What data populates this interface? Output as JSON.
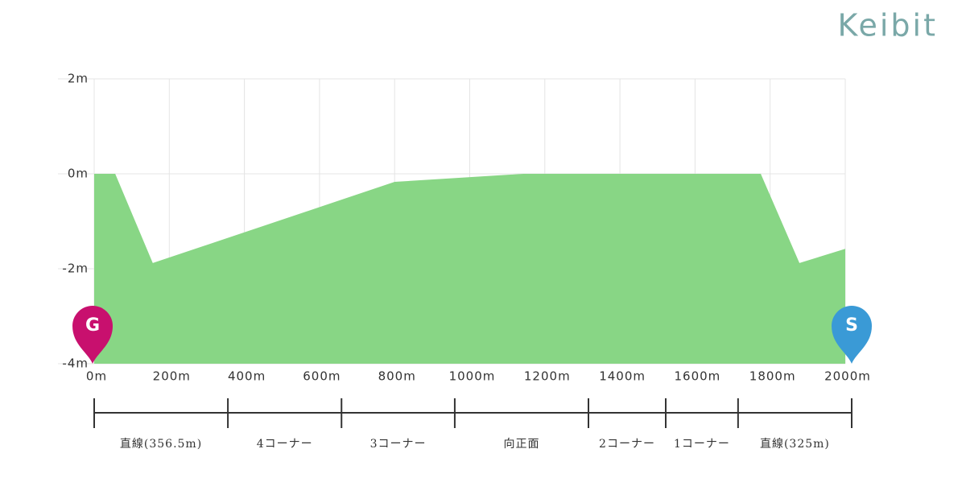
{
  "brand": "Keibit",
  "chart_data": {
    "type": "area",
    "color": "#88d685",
    "grid": true,
    "x": [
      0,
      56,
      156,
      800,
      1143,
      1775,
      1878,
      2000
    ],
    "values": [
      0,
      0,
      -1.88,
      -0.17,
      0,
      0,
      -1.88,
      -1.58
    ],
    "xlim": [
      0,
      2000
    ],
    "xticks": [
      {
        "value": 0,
        "label": "0m"
      },
      {
        "value": 200,
        "label": "200m"
      },
      {
        "value": 400,
        "label": "400m"
      },
      {
        "value": 600,
        "label": "600m"
      },
      {
        "value": 800,
        "label": "800m"
      },
      {
        "value": 1000,
        "label": "1000m"
      },
      {
        "value": 1200,
        "label": "1200m"
      },
      {
        "value": 1400,
        "label": "1400m"
      },
      {
        "value": 1600,
        "label": "1600m"
      },
      {
        "value": 1800,
        "label": "1800m"
      },
      {
        "value": 2000,
        "label": "2000m"
      }
    ],
    "ylim": [
      -4,
      2
    ],
    "yticks": [
      {
        "value": 2,
        "label": "2m"
      },
      {
        "value": 0,
        "label": "0m"
      },
      {
        "value": -2,
        "label": "-2m"
      },
      {
        "value": -4,
        "label": "-4m"
      }
    ],
    "markers": {
      "goal": "G",
      "start": "S"
    },
    "course_sections": {
      "labels": [
        "直線(356.5m)",
        "4コーナー",
        "3コーナー",
        "向正面",
        "2コーナー",
        "1コーナー",
        "直線(325m)"
      ],
      "boundaries": [
        0,
        353,
        653,
        952,
        1305,
        1509,
        1700,
        2000
      ]
    }
  }
}
